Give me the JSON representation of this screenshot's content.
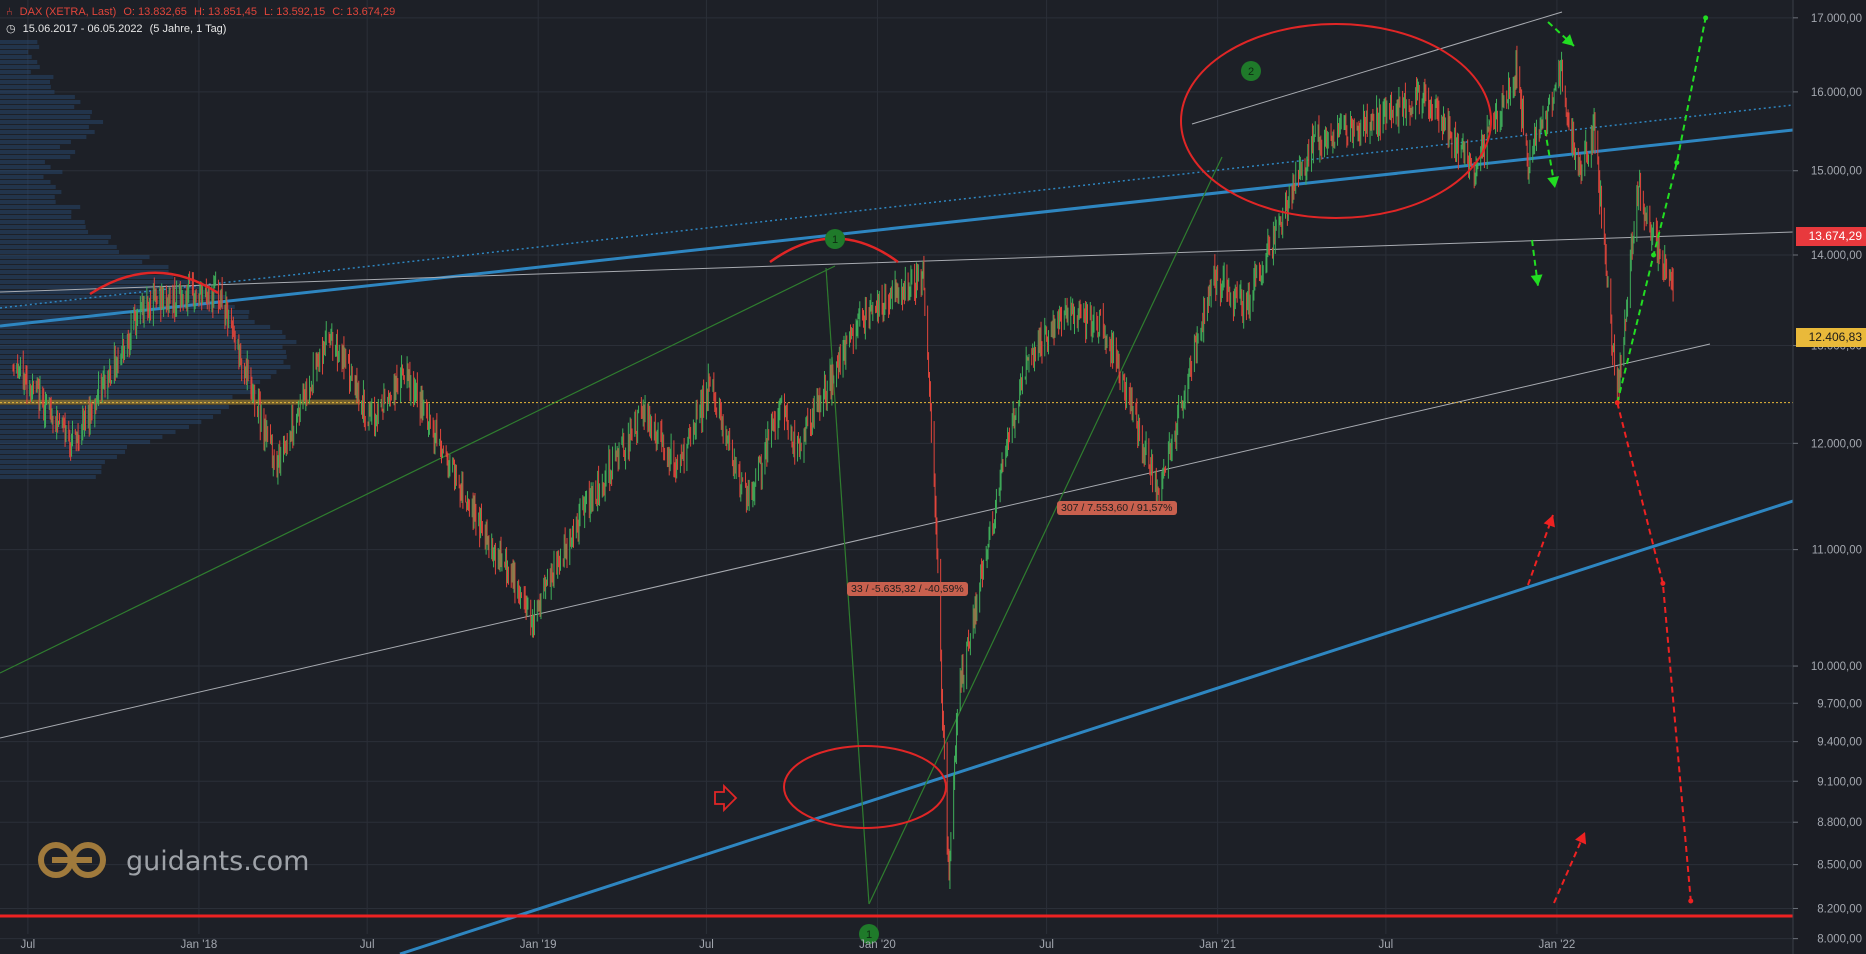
{
  "header": {
    "instrument": "DAX (XETRA, Last)",
    "open": "O: 13.832,65",
    "high": "H: 13.851,45",
    "low": "L: 13.592,15",
    "close": "C: 13.674,29",
    "range": "15.06.2017 - 06.05.2022",
    "period": "(5 Jahre, 1 Tag)"
  },
  "brand": {
    "text": "guidants.com",
    "color": "#a07a3c"
  },
  "colors": {
    "background": "#1d2027",
    "up": "#3fae5a",
    "down": "#e0453b",
    "trendline_blue": "#2e86c1",
    "projection_green": "#22dd22",
    "projection_red": "#ee2222"
  },
  "price_tags": {
    "current": "13.674,29",
    "level": "12.406,83"
  },
  "annotations": {
    "drop": "33 / -5.635,32 / -40,59%",
    "rise": "307 / 7.553,60 / 91,57%"
  },
  "markers": {
    "one": "1",
    "two": "2"
  },
  "chart_data": {
    "type": "candlestick",
    "title": "DAX (XETRA, Last)",
    "y_scale": "log",
    "ylim": [
      7900,
      17250
    ],
    "y_ticks": [
      "17.000,00",
      "16.000,00",
      "15.000,00",
      "14.000,00",
      "13.000,00",
      "12.000,00",
      "11.000,00",
      "10.000,00",
      "9.700,00",
      "9.400,00",
      "9.100,00",
      "8.800,00",
      "8.500,00",
      "8.200,00",
      "8.000,00"
    ],
    "x_ticks": [
      "Jul",
      "Jan '18",
      "Jul",
      "Jan '19",
      "Jul",
      "Jan '20",
      "Jul",
      "Jan '21",
      "Jul",
      "Jan '22"
    ],
    "path_points": [
      [
        "2017-06-15",
        12800
      ],
      [
        "2017-08-20",
        12000
      ],
      [
        "2017-11-05",
        13480
      ],
      [
        "2018-01-23",
        13560
      ],
      [
        "2018-03-26",
        11800
      ],
      [
        "2018-05-22",
        13150
      ],
      [
        "2018-07-05",
        12200
      ],
      [
        "2018-08-10",
        12700
      ],
      [
        "2018-10-26",
        11300
      ],
      [
        "2018-12-27",
        10400
      ],
      [
        "2019-02-15",
        11300
      ],
      [
        "2019-04-25",
        12300
      ],
      [
        "2019-06-01",
        11730
      ],
      [
        "2019-07-05",
        12600
      ],
      [
        "2019-08-15",
        11400
      ],
      [
        "2019-09-20",
        12450
      ],
      [
        "2019-10-05",
        11900
      ],
      [
        "2019-12-15",
        13300
      ],
      [
        "2020-02-19",
        13790
      ],
      [
        "2020-03-01",
        11900
      ],
      [
        "2020-03-18",
        8350
      ],
      [
        "2020-03-27",
        9700
      ],
      [
        "2020-04-17",
        10600
      ],
      [
        "2020-06-08",
        12800
      ],
      [
        "2020-07-21",
        13300
      ],
      [
        "2020-09-02",
        13200
      ],
      [
        "2020-10-30",
        11500
      ],
      [
        "2020-12-28",
        13800
      ],
      [
        "2021-01-29",
        13400
      ],
      [
        "2021-04-16",
        15400
      ],
      [
        "2021-07-02",
        15700
      ],
      [
        "2021-08-12",
        15950
      ],
      [
        "2021-10-04",
        15000
      ],
      [
        "2021-11-18",
        16300
      ],
      [
        "2021-12-01",
        15100
      ],
      [
        "2022-01-05",
        16270
      ],
      [
        "2022-01-24",
        15000
      ],
      [
        "2022-02-10",
        15500
      ],
      [
        "2022-03-07",
        12440
      ],
      [
        "2022-03-29",
        14800
      ],
      [
        "2022-04-25",
        13900
      ],
      [
        "2022-05-06",
        13674
      ]
    ],
    "horizontal_levels": [
      {
        "value": 12406.83,
        "color": "#e9b93a"
      },
      {
        "value": 8150,
        "color": "#ee2222"
      }
    ],
    "green_projection": [
      [
        "2022-03-07",
        12406
      ],
      [
        "2022-04-15",
        14000
      ],
      [
        "2022-05-10",
        15100
      ],
      [
        "2022-06-10",
        17000
      ]
    ],
    "red_projection": [
      [
        "2022-03-07",
        12406
      ],
      [
        "2022-04-25",
        10700
      ],
      [
        "2022-05-25",
        8250
      ]
    ]
  }
}
